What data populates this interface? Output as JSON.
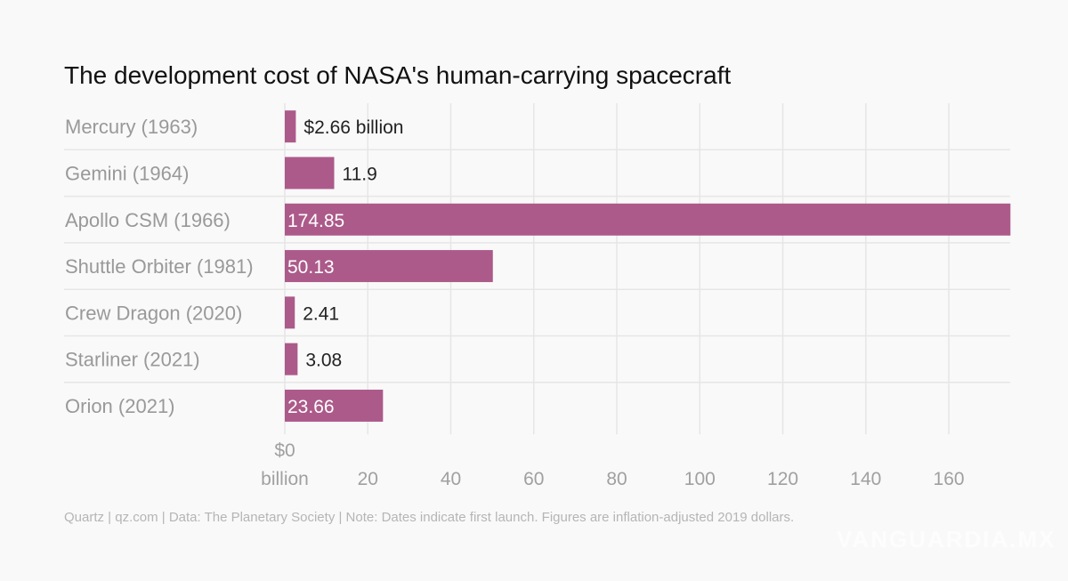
{
  "chart_data": {
    "type": "bar",
    "orientation": "horizontal",
    "title": "The development cost of NASA's human-carrying spacecraft",
    "categories": [
      "Mercury (1963)",
      "Gemini (1964)",
      "Apollo CSM (1966)",
      "Shuttle Orbiter (1981)",
      "Crew Dragon (2020)",
      "Starliner (2021)",
      "Orion (2021)"
    ],
    "values": [
      2.66,
      11.9,
      174.85,
      50.13,
      2.41,
      3.08,
      23.66
    ],
    "data_labels": [
      "$2.66 billion",
      "11.9",
      "174.85",
      "50.13",
      "2.41",
      "3.08",
      "23.66"
    ],
    "xlim": [
      0,
      175
    ],
    "xticks": [
      0,
      20,
      40,
      60,
      80,
      100,
      120,
      140,
      160
    ],
    "xtick_labels": [
      "$0\nbillion",
      "20",
      "40",
      "60",
      "80",
      "100",
      "120",
      "140",
      "160"
    ],
    "grid": true,
    "bar_color": "#ac5a8a",
    "footer": "Quartz | qz.com | Data: The Planetary Society | Note: Dates indicate first launch. Figures are inflation-adjusted 2019 dollars."
  },
  "watermark": "VANGUARDIA.MX"
}
